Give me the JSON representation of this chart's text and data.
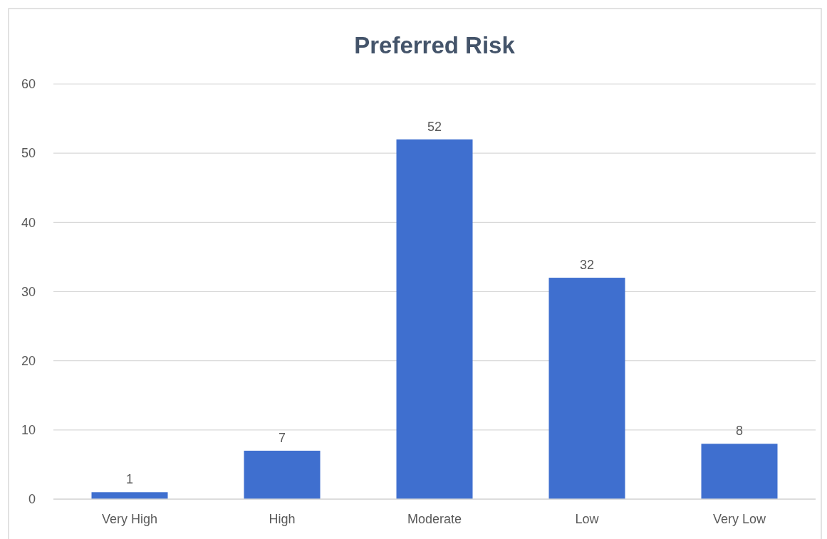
{
  "chart_data": {
    "type": "bar",
    "title": "Preferred Risk",
    "categories": [
      "Very High",
      "High",
      "Moderate",
      "Low",
      "Very Low"
    ],
    "values": [
      1,
      7,
      52,
      32,
      8
    ],
    "color": "#3f6fcf",
    "ylim": [
      0,
      60
    ],
    "yticks": [
      0,
      10,
      20,
      30,
      40,
      50,
      60
    ],
    "grid": "y",
    "data_labels": true
  }
}
